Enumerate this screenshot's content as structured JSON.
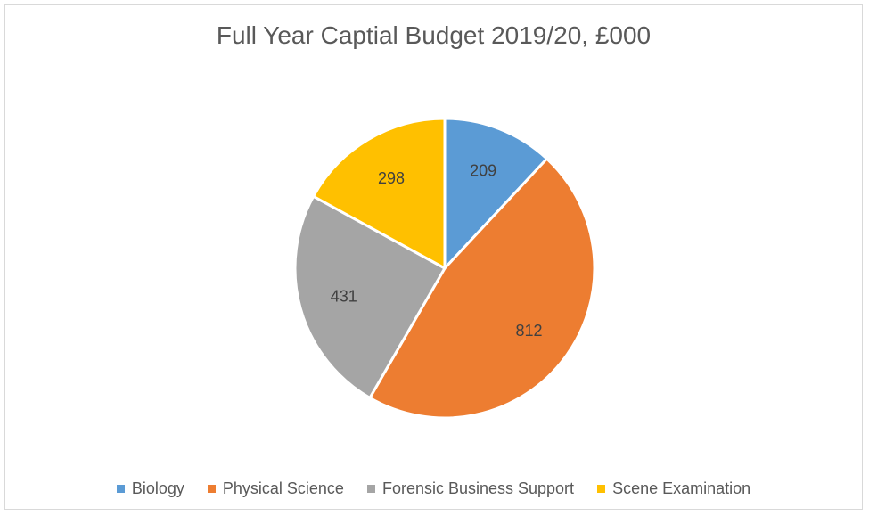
{
  "chart_data": {
    "type": "pie",
    "title": "Full Year Captial Budget 2019/20, £000",
    "categories": [
      "Biology",
      "Physical Science",
      "Forensic Business Support",
      "Scene Examination"
    ],
    "values": [
      209,
      812,
      431,
      298
    ],
    "colors": [
      "#5b9bd5",
      "#ed7d31",
      "#a5a5a5",
      "#ffc000"
    ],
    "start_angle_deg": 0,
    "direction": "clockwise",
    "legend_position": "bottom",
    "data_labels": true,
    "slice_border_color": "#ffffff"
  }
}
